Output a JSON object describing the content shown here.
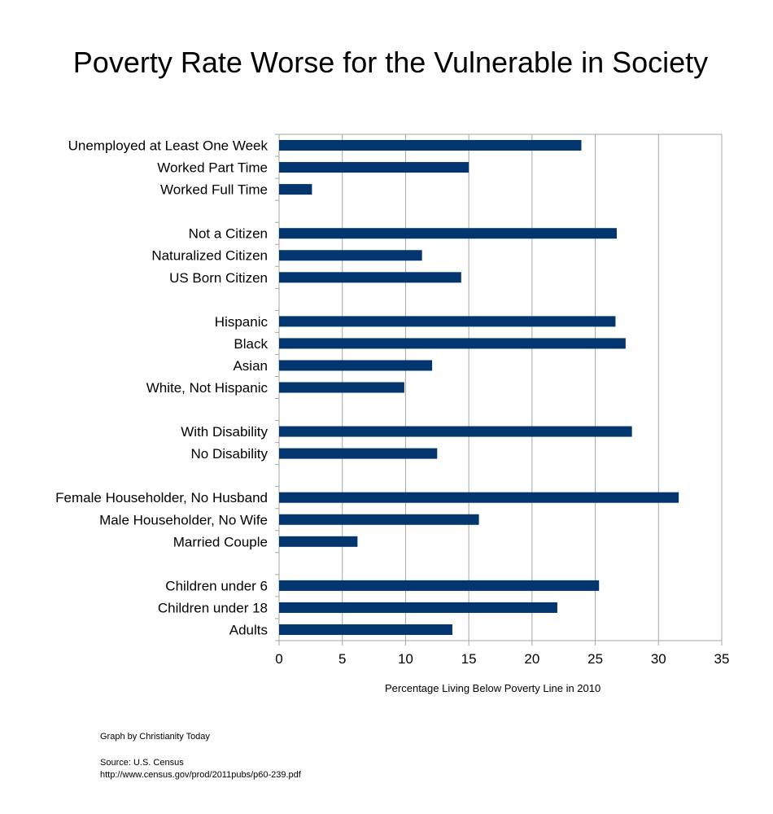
{
  "chart_data": {
    "type": "bar",
    "orientation": "horizontal",
    "title": "Poverty Rate Worse for the Vulnerable in Society",
    "xlabel": "Percentage Living Below Poverty Line in 2010",
    "ylabel": "",
    "xlim": [
      0,
      35
    ],
    "xticks": [
      0,
      5,
      10,
      15,
      20,
      25,
      30,
      35
    ],
    "grid": true,
    "bar_color": "#03356f",
    "groups": [
      {
        "categories": [
          "Unemployed at Least One Week",
          "Worked Part Time",
          "Worked Full Time"
        ],
        "values": [
          23.9,
          15.0,
          2.6
        ]
      },
      {
        "categories": [
          "Not a Citizen",
          "Naturalized Citizen",
          "US Born Citizen"
        ],
        "values": [
          26.7,
          11.3,
          14.4
        ]
      },
      {
        "categories": [
          "Hispanic",
          "Black",
          "Asian",
          "White, Not Hispanic"
        ],
        "values": [
          26.6,
          27.4,
          12.1,
          9.9
        ]
      },
      {
        "categories": [
          "With Disability",
          "No Disability"
        ],
        "values": [
          27.9,
          12.5
        ]
      },
      {
        "categories": [
          "Female Householder, No Husband",
          "Male Householder, No Wife",
          "Married Couple"
        ],
        "values": [
          31.6,
          15.8,
          6.2
        ]
      },
      {
        "categories": [
          "Children under 6",
          "Children under 18",
          "Adults"
        ],
        "values": [
          25.3,
          22.0,
          13.7
        ]
      }
    ]
  },
  "footer": {
    "credit": "Graph by Christianity Today",
    "source_line1": "Source: U.S. Census",
    "source_line2": "http://www.census.gov/prod/2011pubs/p60-239.pdf"
  }
}
